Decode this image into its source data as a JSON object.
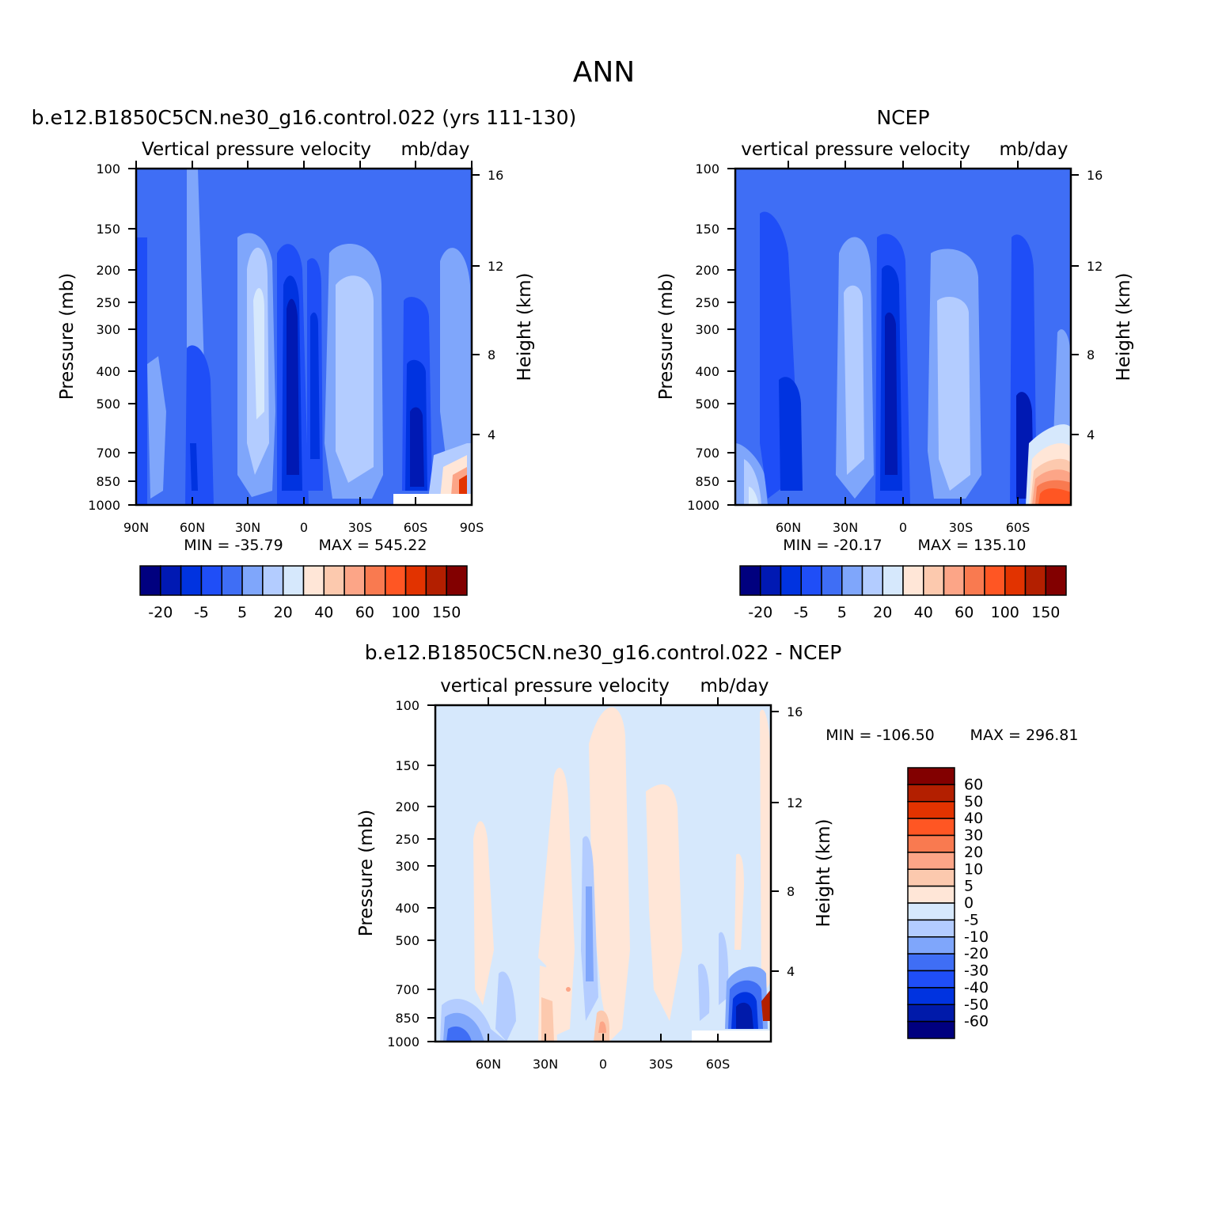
{
  "figure": {
    "title": "ANN"
  },
  "colors": {
    "abs_scale": [
      "#00007f",
      "#0019b3",
      "#0033e0",
      "#1f4ef7",
      "#3f6ef5",
      "#7fa6fb",
      "#b3ccff",
      "#d6e8fc",
      "#ffe6d7",
      "#fcc9ae",
      "#fca587",
      "#f97a50",
      "#ff5623",
      "#e23300",
      "#b31f00",
      "#820000"
    ],
    "diff_scale": [
      "#00007f",
      "#001aaa",
      "#0033e0",
      "#1f4ef7",
      "#3f6ef5",
      "#7fa6fb",
      "#b3ccff",
      "#d6e8fc",
      "#ffe6d7",
      "#fcc9ae",
      "#fca587",
      "#f97a50",
      "#ff5623",
      "#e23300",
      "#b31f00",
      "#820000"
    ]
  },
  "chart_data": [
    {
      "type": "heatmap",
      "subtitle": "b.e12.B1850C5CN.ne30_g16.control.022 (yrs 111-130)",
      "title": "Vertical pressure velocity",
      "units": "mb/day",
      "xlabel": "",
      "ylabel": "Pressure (mb)",
      "ylabel_right": "Height (km)",
      "x_ticks": [
        "90N",
        "60N",
        "30N",
        "0",
        "30S",
        "60S",
        "90S"
      ],
      "y_ticks": [
        "100",
        "150",
        "200",
        "250",
        "300",
        "400",
        "500",
        "700",
        "850",
        "1000"
      ],
      "y_right_ticks": [
        "16",
        "12",
        "8",
        "4"
      ],
      "ylim": [
        1000,
        100
      ],
      "min_label": "MIN = -35.79",
      "max_label": "MAX = 545.22",
      "min": -35.79,
      "max": 545.22,
      "colorbar_labels": [
        "-20",
        "-5",
        "5",
        "20",
        "40",
        "60",
        "100",
        "150"
      ]
    },
    {
      "type": "heatmap",
      "subtitle": "NCEP",
      "title": "vertical pressure velocity",
      "units": "mb/day",
      "xlabel": "",
      "ylabel": "Pressure (mb)",
      "ylabel_right": "Height (km)",
      "x_ticks": [
        "60N",
        "30N",
        "0",
        "30S",
        "60S"
      ],
      "y_ticks": [
        "100",
        "150",
        "200",
        "250",
        "300",
        "400",
        "500",
        "700",
        "850",
        "1000"
      ],
      "y_right_ticks": [
        "16",
        "12",
        "8",
        "4"
      ],
      "ylim": [
        1000,
        100
      ],
      "min_label": "MIN = -20.17",
      "max_label": "MAX = 135.10",
      "min": -20.17,
      "max": 135.1,
      "colorbar_labels": [
        "-20",
        "-5",
        "5",
        "20",
        "40",
        "60",
        "100",
        "150"
      ]
    },
    {
      "type": "heatmap",
      "subtitle": "b.e12.B1850C5CN.ne30_g16.control.022 - NCEP",
      "title": "vertical pressure velocity",
      "units": "mb/day",
      "xlabel": "",
      "ylabel": "Pressure (mb)",
      "ylabel_right": "Height (km)",
      "x_ticks": [
        "60N",
        "30N",
        "0",
        "30S",
        "60S"
      ],
      "y_ticks": [
        "100",
        "150",
        "200",
        "250",
        "300",
        "400",
        "500",
        "700",
        "850",
        "1000"
      ],
      "y_right_ticks": [
        "16",
        "12",
        "8",
        "4"
      ],
      "ylim": [
        1000,
        100
      ],
      "min_label": "MIN = -106.50",
      "max_label": "MAX = 296.81",
      "min": -106.5,
      "max": 296.81,
      "colorbar_labels": [
        "60",
        "50",
        "40",
        "30",
        "20",
        "10",
        "5",
        "0",
        "-5",
        "-10",
        "-20",
        "-30",
        "-40",
        "-50",
        "-60"
      ]
    }
  ]
}
